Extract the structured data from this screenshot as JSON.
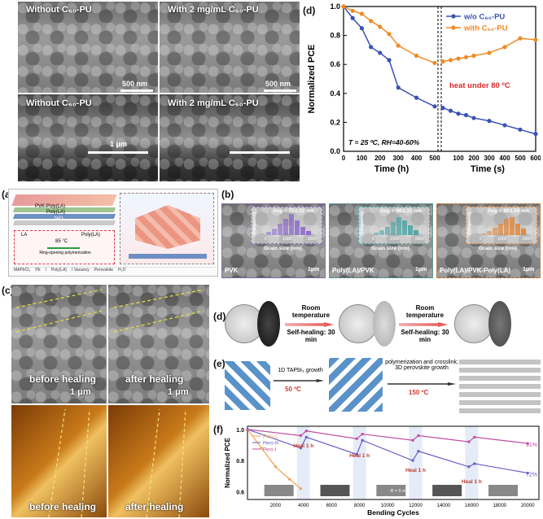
{
  "panel_top": {
    "tag_c": "(c)",
    "tag_d": "(d)",
    "sem": {
      "tl": "Without C₆₀-PU",
      "tr": "With 2 mg/mL C₆₀-PU",
      "bl": "Without C₆₀-PU",
      "br": "With 2 mg/mL C₆₀-PU",
      "scale_top_l": "500 nm",
      "scale_top_r": "500 nm",
      "scale_bottom": "1 μm"
    }
  },
  "chart_data": {
    "type": "line",
    "ylabel": "Normalized PCE",
    "xlabel_left": "Time (h)",
    "xlabel_right": "Time (s)",
    "ylim": [
      0.0,
      1.0
    ],
    "yticks": [
      "0.0",
      "0.2",
      "0.4",
      "0.6",
      "0.8",
      "1.0"
    ],
    "left_x_ticks": [
      "0",
      "100",
      "200",
      "300",
      "400",
      "500"
    ],
    "right_x_ticks": [
      "100",
      "200",
      "300",
      "400",
      "500",
      "600"
    ],
    "annotation_heat": "heat under 80 ºC",
    "annotation_cond": "T = 25 ºC, RH=40-60%",
    "series": [
      {
        "name": "w/o C₆₀-PU",
        "color": "#3a52b5",
        "left": {
          "x": [
            0,
            50,
            100,
            150,
            200,
            250,
            300,
            400,
            500
          ],
          "y": [
            1.0,
            0.92,
            0.85,
            0.72,
            0.68,
            0.63,
            0.44,
            0.37,
            0.31
          ]
        },
        "right": {
          "x": [
            0,
            50,
            100,
            150,
            200,
            300,
            400,
            500,
            600
          ],
          "y": [
            0.3,
            0.28,
            0.26,
            0.25,
            0.23,
            0.21,
            0.18,
            0.15,
            0.12
          ]
        }
      },
      {
        "name": "with C₆₀-PU",
        "color": "#f08a24",
        "left": {
          "x": [
            0,
            50,
            100,
            150,
            200,
            250,
            300,
            400,
            500
          ],
          "y": [
            1.0,
            0.97,
            0.95,
            0.9,
            0.86,
            0.81,
            0.73,
            0.66,
            0.61
          ]
        },
        "right": {
          "x": [
            0,
            50,
            100,
            150,
            200,
            300,
            400,
            500,
            600
          ],
          "y": [
            0.62,
            0.63,
            0.64,
            0.65,
            0.66,
            0.68,
            0.72,
            0.78,
            0.77
          ]
        }
      }
    ]
  },
  "panel_mid": {
    "tag_a": "(a)",
    "tag_b": "(b)",
    "schem_labels": [
      "PVK-Poly(LA)",
      "Poly(LA)",
      "NiOₓ",
      "LA",
      "Poly(LA)",
      "85 °C",
      "Ring-opening polymerization",
      "MAPbCl₃",
      "Pb",
      "I",
      "Poly(LA)",
      "I Vacancy",
      "Perovskite",
      "H₂O"
    ],
    "sem_b": [
      {
        "label": "PVK",
        "avg": "Avg = 752.02 nm",
        "color": "#8a66c9"
      },
      {
        "label": "Poly(LA)/PVK",
        "avg": "Avg = 983.31 nm",
        "color": "#4aa3a3"
      },
      {
        "label": "Poly(LA)/PVK-Poly(LA)",
        "avg": "Avg = 993.59 nm",
        "color": "#e0863b"
      }
    ],
    "hist_ylabel": "Frequency",
    "hist_xlabel": "Grain size (nm)",
    "hist_ticks": [
      "0",
      "1000",
      "2000"
    ],
    "scale": "1μm"
  },
  "panel_bottom": {
    "tag_c": "(c)",
    "tag_d": "(d)",
    "tag_e": "(e)",
    "tag_f": "(f)",
    "before": "before healing",
    "after": "after healing",
    "scale": "1 μm",
    "heal_steps": [
      {
        "label": "Room temperature",
        "sub": "Self-healing: 30 min"
      },
      {
        "label": "Room temperature",
        "sub": "Self-healing: 30 min"
      }
    ],
    "synthesis": [
      {
        "label": "1D TAPbI₃ growth",
        "temp": "50 ºC"
      },
      {
        "label": "polymerization and crosslink; 3D perovskite growth",
        "temp": "150 ºC"
      }
    ]
  },
  "chart_f": {
    "ylabel": "Normalized PCE",
    "xlabel": "Bending Cycles",
    "yticks": [
      "0.6",
      "0.8",
      "1.0"
    ],
    "xticks": [
      "2000",
      "4000",
      "6000",
      "8000",
      "10000",
      "12000",
      "14000",
      "16000",
      "18000",
      "20000"
    ],
    "legend": [
      "Pero-C",
      "Pero-N",
      "Pero-I"
    ],
    "heal_labels": [
      "Heal 1 h",
      "Heal 1 h",
      "Heal 1 h",
      "Heal 1 h"
    ],
    "end_labels": [
      "91%",
      "72%",
      "60%"
    ],
    "r_label": "R = 5 mm"
  }
}
